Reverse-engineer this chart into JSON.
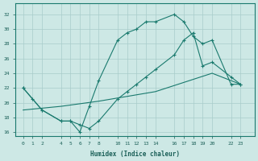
{
  "xlabel": "Humidex (Indice chaleur)",
  "bg_color": "#cde8e5",
  "grid_color": "#a8ccca",
  "line_color": "#1a7a6e",
  "line1_x": [
    0,
    1,
    2,
    4,
    5,
    6,
    7,
    8,
    10,
    11,
    12,
    13,
    14,
    16,
    17,
    18,
    19,
    20,
    22,
    23
  ],
  "line1_y": [
    22,
    20.5,
    19,
    17.5,
    17.5,
    16,
    19.5,
    23,
    28.5,
    29.5,
    30,
    31,
    31,
    32,
    31,
    29,
    28,
    28.5,
    22.5,
    22.5
  ],
  "line2_x": [
    0,
    2,
    4,
    5,
    6,
    7,
    8,
    10,
    11,
    12,
    13,
    14,
    16,
    17,
    18,
    19,
    20,
    22,
    23
  ],
  "line2_y": [
    22,
    19,
    17.5,
    17.5,
    17.0,
    16.5,
    17.5,
    20.5,
    21.5,
    22.5,
    23.5,
    24.5,
    26.5,
    28.5,
    29.5,
    25.0,
    25.5,
    23.5,
    22.5
  ],
  "line3_x": [
    0,
    4,
    8,
    14,
    20,
    23
  ],
  "line3_y": [
    19.0,
    19.5,
    20.2,
    21.5,
    24.0,
    22.5
  ],
  "ylim": [
    15.5,
    33.5
  ],
  "xlim": [
    -0.8,
    24.5
  ],
  "yticks": [
    16,
    18,
    20,
    22,
    24,
    26,
    28,
    30,
    32
  ],
  "xticks": [
    0,
    1,
    2,
    4,
    5,
    6,
    7,
    8,
    10,
    11,
    12,
    13,
    14,
    16,
    17,
    18,
    19,
    20,
    22,
    23
  ]
}
